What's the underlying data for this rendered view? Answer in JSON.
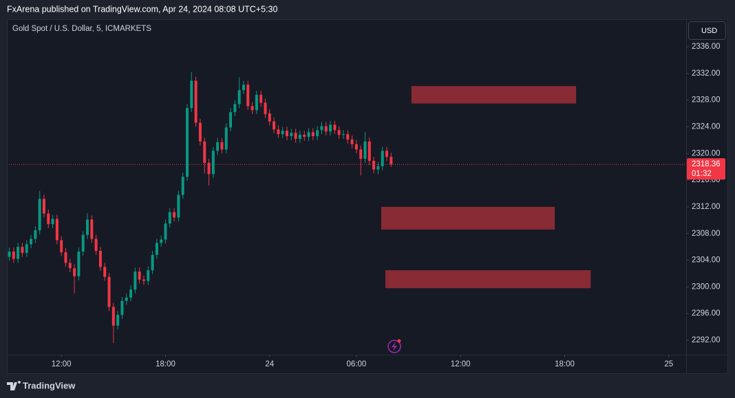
{
  "header": "FxArena published on TradingView.com, Apr 24, 2024 08:08 UTC+5:30",
  "footer": "TradingView",
  "chart_data": {
    "type": "candlestick",
    "title": "Gold Spot / U.S. Dollar, 5, ICMARKETS",
    "currency": "USD",
    "last_price": 2318.36,
    "countdown": "01:32",
    "up_color": "#089981",
    "down_color": "#f23645",
    "zone_color": "#892b34",
    "price_line_color": "#f23645",
    "session_gap": [
      24,
      25
    ],
    "x": [
      8.75,
      9,
      9.25,
      9.5,
      9.75,
      10,
      10.25,
      10.5,
      10.75,
      11,
      11.25,
      11.5,
      11.75,
      12,
      12.25,
      12.5,
      12.75,
      13,
      13.25,
      13.5,
      13.75,
      14,
      14.25,
      14.5,
      14.75,
      15,
      15.25,
      15.5,
      15.75,
      16,
      16.25,
      16.5,
      16.75,
      17,
      17.25,
      17.5,
      17.75,
      18,
      18.25,
      18.5,
      18.75,
      19,
      19.25,
      19.5,
      19.75,
      20,
      20.25,
      20.5,
      20.75,
      21,
      21.25,
      21.5,
      21.75,
      22,
      22.25,
      22.5,
      22.75,
      23,
      23.25,
      23.5,
      23.75,
      25,
      25.25,
      25.5,
      25.75,
      26,
      26.25,
      26.5,
      26.75,
      27,
      27.25,
      27.5,
      27.75,
      28,
      28.25,
      28.5,
      28.75,
      29,
      29.25,
      29.5,
      29.75,
      30,
      30.25,
      30.5,
      30.75,
      31,
      31.25,
      31.5,
      31.75,
      32
    ],
    "open": [
      2304.0,
      2304.5,
      2305.3,
      2304.2,
      2306.0,
      2305.1,
      2306.4,
      2307.2,
      2308.5,
      2313.2,
      2311.0,
      2309.4,
      2310.2,
      2307.0,
      2305.2,
      2303.6,
      2302.8,
      2301.6,
      2305.3,
      2307.8,
      2310.1,
      2307.2,
      2305.4,
      2303.0,
      2301.5,
      2297.0,
      2294.2,
      2295.8,
      2297.9,
      2298.4,
      2299.6,
      2302.3,
      2301.1,
      2300.9,
      2302.5,
      2304.8,
      2306.6,
      2307.1,
      2309.5,
      2311.2,
      2310.4,
      2313.8,
      2316.5,
      2326.8,
      2330.9,
      2324.6,
      2321.8,
      2318.6,
      2316.9,
      2320.4,
      2321.7,
      2320.6,
      2323.9,
      2326.2,
      2327.4,
      2329.5,
      2330.3,
      2327.1,
      2326.5,
      2328.8,
      2327.6,
      2326.0,
      2324.8,
      2323.6,
      2322.9,
      2323.4,
      2322.6,
      2323.1,
      2322.2,
      2322.8,
      2322.5,
      2323.2,
      2322.6,
      2323.5,
      2324.1,
      2323.3,
      2324.3,
      2323.5,
      2322.8,
      2322.9,
      2322.1,
      2321.4,
      2320.6,
      2319.2,
      2321.8,
      2318.9,
      2317.6,
      2318.1,
      2320.4,
      2319.5
    ],
    "high": [
      2305.1,
      2305.9,
      2305.9,
      2306.6,
      2306.6,
      2307.0,
      2307.8,
      2309.1,
      2314.4,
      2313.8,
      2311.6,
      2310.8,
      2310.8,
      2307.6,
      2305.8,
      2304.2,
      2303.4,
      2305.9,
      2308.4,
      2311.0,
      2310.7,
      2307.8,
      2306.0,
      2303.6,
      2302.1,
      2297.6,
      2296.4,
      2298.5,
      2299.0,
      2300.2,
      2302.9,
      2302.9,
      2301.7,
      2303.1,
      2305.4,
      2307.2,
      2307.7,
      2310.1,
      2311.8,
      2311.8,
      2314.4,
      2317.1,
      2327.4,
      2332.2,
      2331.5,
      2325.2,
      2322.4,
      2319.2,
      2321.0,
      2322.3,
      2322.3,
      2324.5,
      2326.8,
      2328.0,
      2331.4,
      2330.9,
      2330.9,
      2327.7,
      2329.4,
      2329.4,
      2328.2,
      2326.6,
      2325.4,
      2324.2,
      2324.0,
      2324.0,
      2323.7,
      2323.7,
      2323.4,
      2323.4,
      2323.8,
      2323.8,
      2324.1,
      2324.7,
      2324.7,
      2324.9,
      2324.9,
      2324.1,
      2323.5,
      2323.5,
      2322.7,
      2322.0,
      2321.2,
      2323.2,
      2322.4,
      2319.5,
      2318.7,
      2321.0,
      2321.0,
      2320.1
    ],
    "low": [
      2303.4,
      2303.9,
      2303.6,
      2303.6,
      2304.5,
      2304.5,
      2305.8,
      2306.6,
      2307.9,
      2310.4,
      2308.8,
      2308.8,
      2306.4,
      2304.6,
      2303.0,
      2302.2,
      2299.0,
      2301.0,
      2304.7,
      2307.2,
      2306.6,
      2304.8,
      2302.4,
      2300.9,
      2296.4,
      2291.6,
      2293.6,
      2295.2,
      2297.3,
      2297.8,
      2299.0,
      2300.5,
      2300.3,
      2300.3,
      2301.9,
      2304.2,
      2306.0,
      2306.5,
      2308.9,
      2309.8,
      2309.8,
      2313.2,
      2315.9,
      2326.2,
      2324.0,
      2321.2,
      2317.0,
      2315.2,
      2316.3,
      2319.8,
      2320.0,
      2320.0,
      2323.3,
      2325.6,
      2326.8,
      2328.9,
      2326.5,
      2325.9,
      2325.9,
      2327.0,
      2325.3,
      2324.2,
      2323.0,
      2322.3,
      2322.3,
      2322.0,
      2322.0,
      2321.6,
      2321.6,
      2321.9,
      2321.9,
      2322.0,
      2322.0,
      2322.9,
      2322.7,
      2322.7,
      2322.9,
      2322.2,
      2322.2,
      2321.5,
      2320.8,
      2320.0,
      2316.7,
      2318.6,
      2318.3,
      2317.0,
      2316.9,
      2317.5,
      2318.9,
      2318.0
    ],
    "close": [
      2304.5,
      2305.3,
      2304.2,
      2306.0,
      2305.1,
      2306.4,
      2307.2,
      2308.5,
      2313.2,
      2311.0,
      2309.4,
      2310.2,
      2307.0,
      2305.2,
      2303.6,
      2302.8,
      2301.6,
      2305.3,
      2307.8,
      2310.1,
      2307.2,
      2305.4,
      2303.0,
      2301.5,
      2297.0,
      2294.2,
      2295.8,
      2297.9,
      2298.4,
      2299.6,
      2302.3,
      2301.1,
      2300.9,
      2302.5,
      2304.8,
      2306.6,
      2307.1,
      2309.5,
      2311.2,
      2310.4,
      2313.8,
      2316.5,
      2326.8,
      2330.9,
      2324.6,
      2321.8,
      2318.6,
      2316.9,
      2320.4,
      2321.7,
      2320.6,
      2323.9,
      2326.2,
      2327.4,
      2329.5,
      2330.3,
      2327.1,
      2326.5,
      2328.8,
      2327.6,
      2325.9,
      2324.8,
      2323.6,
      2322.9,
      2323.4,
      2322.6,
      2323.1,
      2322.2,
      2322.8,
      2322.5,
      2323.2,
      2322.6,
      2323.5,
      2324.1,
      2323.3,
      2324.3,
      2323.5,
      2322.8,
      2322.9,
      2322.1,
      2321.4,
      2320.6,
      2319.2,
      2321.8,
      2318.9,
      2317.6,
      2318.1,
      2320.4,
      2319.5,
      2318.36
    ],
    "zones": [
      {
        "x": [
          33.17,
          42.66
        ],
        "y": [
          2327.5,
          2330.1
        ]
      },
      {
        "x": [
          31.43,
          41.43
        ],
        "y": [
          2308.6,
          2312.0
        ]
      },
      {
        "x": [
          31.67,
          43.5
        ],
        "y": [
          2299.8,
          2302.5
        ]
      }
    ],
    "xlim": [
      8.86,
      49.0
    ],
    "ylim": [
      2289.84,
      2340.12
    ],
    "xticks": [
      {
        "value": 12,
        "label": "12:00"
      },
      {
        "value": 18,
        "label": "18:00"
      },
      24,
      {
        "value": 30,
        "label": "06:00"
      },
      {
        "value": 36,
        "label": "12:00"
      },
      {
        "value": 42,
        "label": "18:00"
      },
      {
        "value": 48,
        "label": "25"
      }
    ],
    "yticks": [
      {
        "value": 2292,
        "label": "2292.00"
      },
      {
        "value": 2296,
        "label": "2296.00"
      },
      {
        "value": 2300,
        "label": "2300.00"
      },
      {
        "value": 2304,
        "label": "2304.00"
      },
      {
        "value": 2308,
        "label": "2308.00"
      },
      {
        "value": 2312,
        "label": "2312.00"
      },
      {
        "value": 2316,
        "label": "2316.00"
      },
      {
        "value": 2320,
        "label": "2320.00"
      },
      {
        "value": 2324,
        "label": "2324.00"
      },
      {
        "value": 2328,
        "label": "2328.00"
      },
      {
        "value": 2332,
        "label": "2332.00"
      },
      {
        "value": 2336,
        "label": "2336.00"
      }
    ]
  }
}
